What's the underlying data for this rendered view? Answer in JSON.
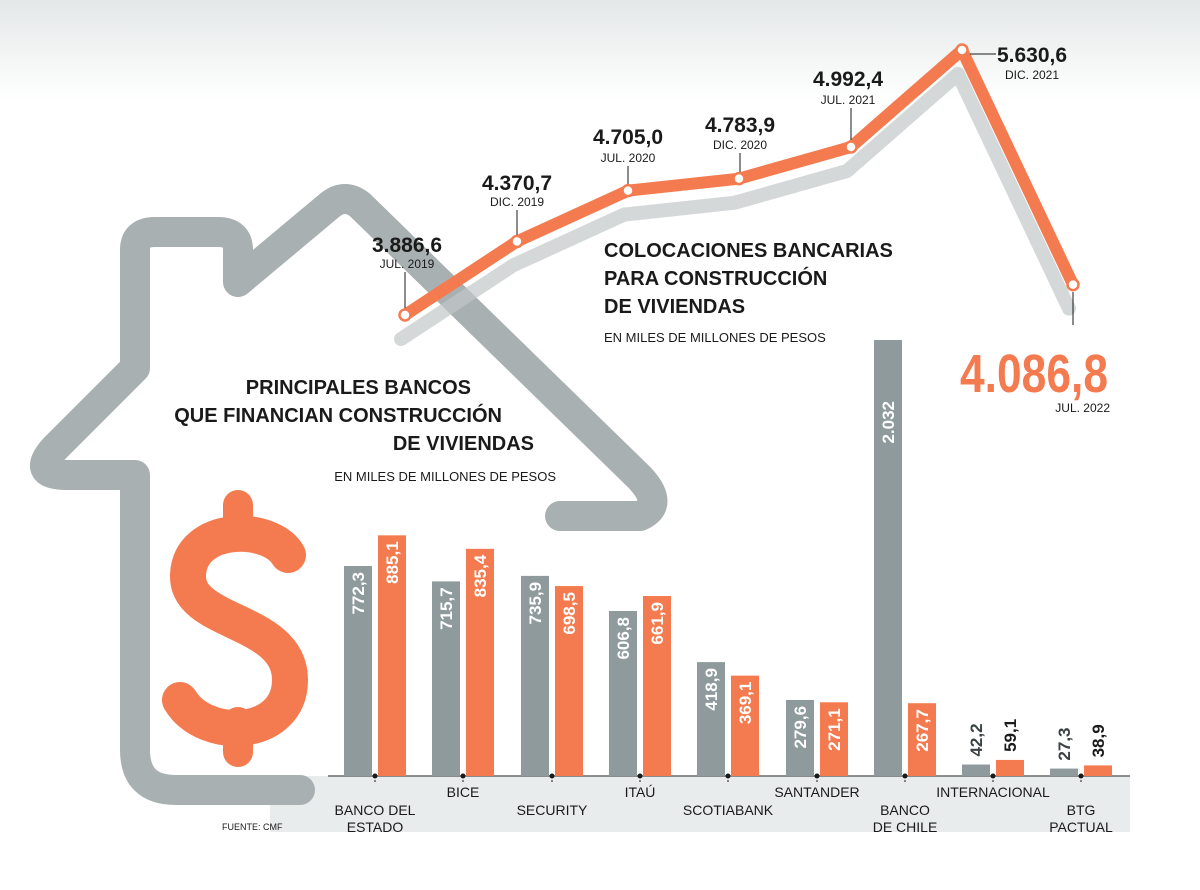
{
  "colors": {
    "orange": "#f47b4f",
    "gray": "#8e9a9c",
    "house": "#a9b0b1",
    "text": "#1a1a1a",
    "band": "#e9ecec"
  },
  "source": "FUENTE: CMF",
  "line_chart": {
    "title_lines": [
      "COLOCACIONES BANCARIAS",
      "PARA CONSTRUCCIÓN",
      "DE VIVIENDAS"
    ],
    "subtitle": "EN MILES DE MILLONES DE PESOS"
  },
  "bar_chart": {
    "title_lines": [
      "PRINCIPALES BANCOS",
      "QUE FINANCIAN CONSTRUCCIÓN",
      "DE VIVIENDAS"
    ],
    "subtitle": "EN MILES DE MILLONES DE PESOS"
  },
  "chart_data": [
    {
      "type": "line",
      "x": [
        "JUL. 2019",
        "DIC. 2019",
        "JUL. 2020",
        "DIC. 2020",
        "JUL. 2021",
        "DIC. 2021",
        "JUL. 2022"
      ],
      "y": [
        3886.6,
        4370.7,
        4705.0,
        4783.9,
        4992.4,
        5630.6,
        4086.8
      ],
      "value_labels": [
        "3.886,6",
        "4.370,7",
        "4.705,0",
        "4.783,9",
        "4.992,4",
        "5.630,6",
        "4.086,8"
      ],
      "title": "COLOCACIONES BANCARIAS PARA CONSTRUCCIÓN DE VIVIENDAS",
      "subtitle": "EN MILES DE MILLONES DE PESOS",
      "color": "#f47b4f"
    },
    {
      "type": "bar",
      "title": "PRINCIPALES BANCOS QUE FINANCIAN CONSTRUCCIÓN DE VIVIENDAS",
      "subtitle": "EN MILES DE MILLONES DE PESOS",
      "categories": [
        [
          "BANCO DEL",
          "ESTADO"
        ],
        [
          "BICE"
        ],
        [
          "SECURITY"
        ],
        [
          "ITAÚ"
        ],
        [
          "SCOTIABANK"
        ],
        [
          "SANTANDER"
        ],
        [
          "BANCO",
          "DE CHILE"
        ],
        [
          "INTERNACIONAL"
        ],
        [
          "BTG",
          "PACTUAL"
        ]
      ],
      "series": [
        {
          "color": "#8e9a9c",
          "values": [
            772.3,
            715.7,
            735.9,
            606.8,
            418.9,
            279.6,
            2032,
            42.2,
            27.3
          ],
          "labels": [
            "772,3",
            "715,7",
            "735,9",
            "606,8",
            "418,9",
            "279,6",
            "2.032",
            "42,2",
            "27,3"
          ]
        },
        {
          "color": "#f47b4f",
          "values": [
            885.1,
            835.4,
            698.5,
            661.9,
            369.1,
            271.1,
            267.7,
            59.1,
            38.9
          ],
          "labels": [
            "885,1",
            "835,4",
            "698,5",
            "661,9",
            "369,1",
            "271,1",
            "267,7",
            "59,1",
            "38,9"
          ]
        }
      ]
    }
  ]
}
